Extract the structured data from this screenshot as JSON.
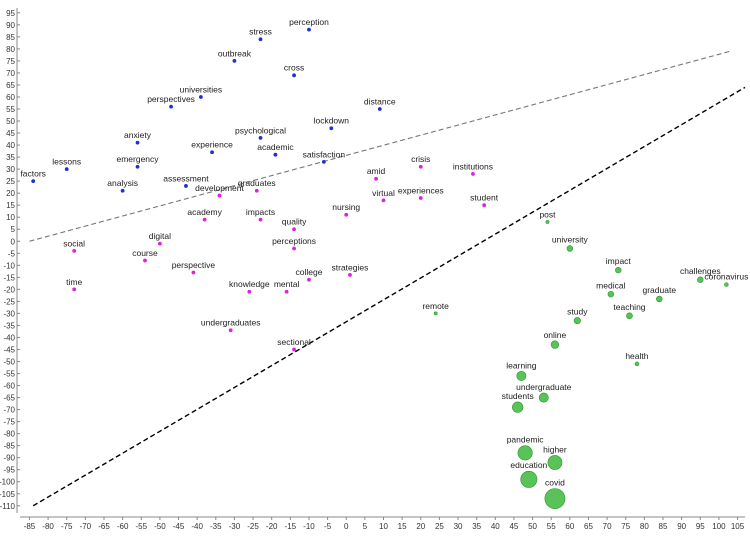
{
  "chart_data": {
    "type": "scatter",
    "title": "",
    "xlabel": "",
    "ylabel": "",
    "xlim": [
      -87,
      107
    ],
    "ylim": [
      -113,
      97
    ],
    "x_ticks": [
      -85,
      -80,
      -75,
      -70,
      -65,
      -60,
      -55,
      -50,
      -45,
      -40,
      -35,
      -30,
      -25,
      -20,
      -15,
      -10,
      -5,
      0,
      5,
      10,
      15,
      20,
      25,
      30,
      35,
      40,
      45,
      50,
      55,
      60,
      65,
      70,
      75,
      80,
      85,
      90,
      95,
      100,
      105
    ],
    "y_ticks": [
      95,
      90,
      85,
      80,
      75,
      70,
      65,
      60,
      55,
      50,
      45,
      40,
      35,
      30,
      25,
      20,
      15,
      10,
      5,
      0,
      -5,
      -10,
      -15,
      -20,
      -25,
      -30,
      -35,
      -40,
      -45,
      -50,
      -55,
      -60,
      -65,
      -70,
      -75,
      -80,
      -85,
      -90,
      -95,
      -100,
      -105,
      -110
    ],
    "grid": false,
    "lines": [
      {
        "style": "dashed",
        "color": "#777777",
        "points": [
          [
            -85,
            0
          ],
          [
            103,
            79
          ]
        ]
      },
      {
        "style": "dashed",
        "color": "#000000",
        "points": [
          [
            -84,
            -110
          ],
          [
            107,
            64
          ]
        ]
      }
    ],
    "series": [
      {
        "color": "#1f2fd6",
        "points": [
          {
            "label": "perception",
            "x": -10,
            "y": 88,
            "size": 1
          },
          {
            "label": "stress",
            "x": -23,
            "y": 84,
            "size": 1
          },
          {
            "label": "outbreak",
            "x": -30,
            "y": 75,
            "size": 1
          },
          {
            "label": "cross",
            "x": -14,
            "y": 69,
            "size": 1
          },
          {
            "label": "universities",
            "x": -39,
            "y": 60,
            "size": 1
          },
          {
            "label": "perspectives",
            "x": -47,
            "y": 56,
            "size": 1
          },
          {
            "label": "distance",
            "x": 9,
            "y": 55,
            "size": 1
          },
          {
            "label": "lockdown",
            "x": -4,
            "y": 47,
            "size": 1
          },
          {
            "label": "psychological",
            "x": -23,
            "y": 43,
            "size": 1
          },
          {
            "label": "anxiety",
            "x": -56,
            "y": 41,
            "size": 1
          },
          {
            "label": "experience",
            "x": -36,
            "y": 37,
            "size": 1
          },
          {
            "label": "academic",
            "x": -19,
            "y": 36,
            "size": 1
          },
          {
            "label": "satisfaction",
            "x": -6,
            "y": 33,
            "size": 1
          },
          {
            "label": "emergency",
            "x": -56,
            "y": 31,
            "size": 1
          },
          {
            "label": "lessons",
            "x": -75,
            "y": 30,
            "size": 1
          },
          {
            "label": "factors",
            "x": -84,
            "y": 25,
            "size": 1
          },
          {
            "label": "analysis",
            "x": -60,
            "y": 21,
            "size": 1
          },
          {
            "label": "assessment",
            "x": -43,
            "y": 23,
            "size": 1
          }
        ]
      },
      {
        "color": "#e020e0",
        "points": [
          {
            "label": "crisis",
            "x": 20,
            "y": 31,
            "size": 1
          },
          {
            "label": "institutions",
            "x": 34,
            "y": 28,
            "size": 1
          },
          {
            "label": "amid",
            "x": 8,
            "y": 26,
            "size": 1
          },
          {
            "label": "graduates",
            "x": -24,
            "y": 21,
            "size": 1
          },
          {
            "label": "development",
            "x": -34,
            "y": 19,
            "size": 1
          },
          {
            "label": "virtual",
            "x": 10,
            "y": 17,
            "size": 1
          },
          {
            "label": "experiences",
            "x": 20,
            "y": 18,
            "size": 1
          },
          {
            "label": "student",
            "x": 37,
            "y": 15,
            "size": 1
          },
          {
            "label": "nursing",
            "x": 0,
            "y": 11,
            "size": 1
          },
          {
            "label": "academy",
            "x": -38,
            "y": 9,
            "size": 1
          },
          {
            "label": "impacts",
            "x": -23,
            "y": 9,
            "size": 1
          },
          {
            "label": "quality",
            "x": -14,
            "y": 5,
            "size": 1
          },
          {
            "label": "digital",
            "x": -50,
            "y": -1,
            "size": 1
          },
          {
            "label": "social",
            "x": -73,
            "y": -4,
            "size": 1
          },
          {
            "label": "perceptions",
            "x": -14,
            "y": -3,
            "size": 1
          },
          {
            "label": "course",
            "x": -54,
            "y": -8,
            "size": 1
          },
          {
            "label": "perspective",
            "x": -41,
            "y": -13,
            "size": 1
          },
          {
            "label": "strategies",
            "x": 1,
            "y": -14,
            "size": 1
          },
          {
            "label": "college",
            "x": -10,
            "y": -16,
            "size": 1
          },
          {
            "label": "time",
            "x": -73,
            "y": -20,
            "size": 1
          },
          {
            "label": "knowledge",
            "x": -26,
            "y": -21,
            "size": 1
          },
          {
            "label": "mental",
            "x": -16,
            "y": -21,
            "size": 1
          },
          {
            "label": "undergraduates",
            "x": -31,
            "y": -37,
            "size": 1
          },
          {
            "label": "sectional",
            "x": -14,
            "y": -45,
            "size": 1
          }
        ]
      },
      {
        "color": "#3cb83c",
        "points": [
          {
            "label": "post",
            "x": 54,
            "y": 8,
            "size": 1
          },
          {
            "label": "university",
            "x": 60,
            "y": -3,
            "size": 1.3
          },
          {
            "label": "impact",
            "x": 73,
            "y": -12,
            "size": 1.3
          },
          {
            "label": "challenges",
            "x": 95,
            "y": -16,
            "size": 1.3
          },
          {
            "label": "coronavirus",
            "x": 102,
            "y": -18,
            "size": 1.2
          },
          {
            "label": "medical",
            "x": 71,
            "y": -22,
            "size": 1.3
          },
          {
            "label": "graduate",
            "x": 84,
            "y": -24,
            "size": 1.3
          },
          {
            "label": "remote",
            "x": 24,
            "y": -30,
            "size": 1
          },
          {
            "label": "teaching",
            "x": 76,
            "y": -31,
            "size": 1.4
          },
          {
            "label": "study",
            "x": 62,
            "y": -33,
            "size": 1.5
          },
          {
            "label": "online",
            "x": 56,
            "y": -43,
            "size": 1.9
          },
          {
            "label": "health",
            "x": 78,
            "y": -51,
            "size": 1.2
          },
          {
            "label": "learning",
            "x": 47,
            "y": -56,
            "size": 2.4
          },
          {
            "label": "undergraduate",
            "x": 53,
            "y": -65,
            "size": 2.4
          },
          {
            "label": "students",
            "x": 46,
            "y": -69,
            "size": 2.8
          },
          {
            "label": "pandemic",
            "x": 48,
            "y": -88,
            "size": 4.0
          },
          {
            "label": "higher",
            "x": 56,
            "y": -92,
            "size": 3.9
          },
          {
            "label": "education",
            "x": 49,
            "y": -99,
            "size": 4.6
          },
          {
            "label": "covid",
            "x": 56,
            "y": -107,
            "size": 5.8
          }
        ]
      }
    ]
  }
}
